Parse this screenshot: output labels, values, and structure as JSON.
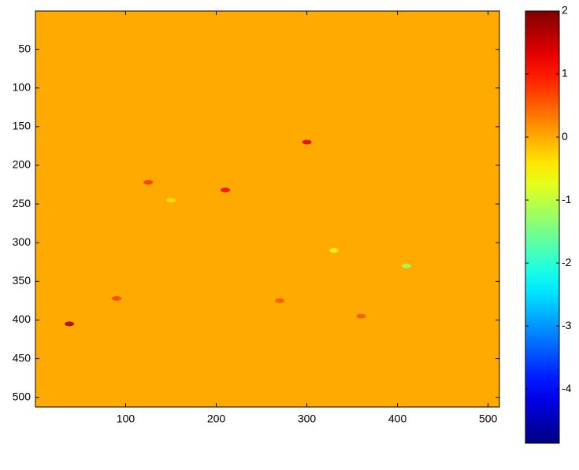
{
  "chart_data": {
    "type": "heatmap",
    "xlim": [
      0.5,
      512.5
    ],
    "ylim": [
      0.5,
      512.5
    ],
    "xticks": [
      100,
      200,
      300,
      400,
      500
    ],
    "yticks": [
      50,
      100,
      150,
      200,
      250,
      300,
      350,
      400,
      450,
      500
    ],
    "background_value": 0,
    "x": [
      38,
      210,
      150,
      330,
      300,
      125,
      270,
      360,
      90,
      410
    ],
    "y": [
      405,
      232,
      245,
      310,
      170,
      222,
      375,
      395,
      372,
      330
    ],
    "values": [
      1.8,
      1.2,
      -0.4,
      -0.5,
      1.4,
      0.8,
      0.6,
      0.6,
      0.7,
      -1.2
    ],
    "colormap": "jet",
    "clim": [
      -4.86,
      2
    ],
    "cticks": [
      -4,
      -3,
      -2,
      -1,
      0,
      1,
      2
    ]
  }
}
